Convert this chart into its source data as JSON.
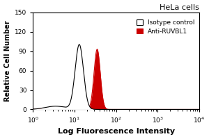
{
  "title": "HeLa cells",
  "xlabel": "Log Fluorescence Intensity",
  "ylabel": "Relative Cell Number",
  "xlim_log": [
    1,
    10000
  ],
  "ylim": [
    0,
    150
  ],
  "yticks": [
    0,
    30,
    60,
    90,
    120,
    150
  ],
  "xtick_positions": [
    1,
    10,
    100,
    1000,
    10000
  ],
  "isotype_color": "#000000",
  "isotype_fill": "#ffffff",
  "anti_color": "#cc0000",
  "anti_fill": "#cc0000",
  "legend_entries": [
    "Isotype control",
    "Anti-RUVBL1"
  ],
  "background_color": "#ffffff",
  "isotype_peak_x": 13,
  "isotype_peak_y": 100,
  "isotype_sigma": 0.1,
  "anti_peak_x": 35,
  "anti_peak_y": 93,
  "anti_sigma": 0.075,
  "figsize": [
    3.0,
    2.0
  ],
  "dpi": 100
}
